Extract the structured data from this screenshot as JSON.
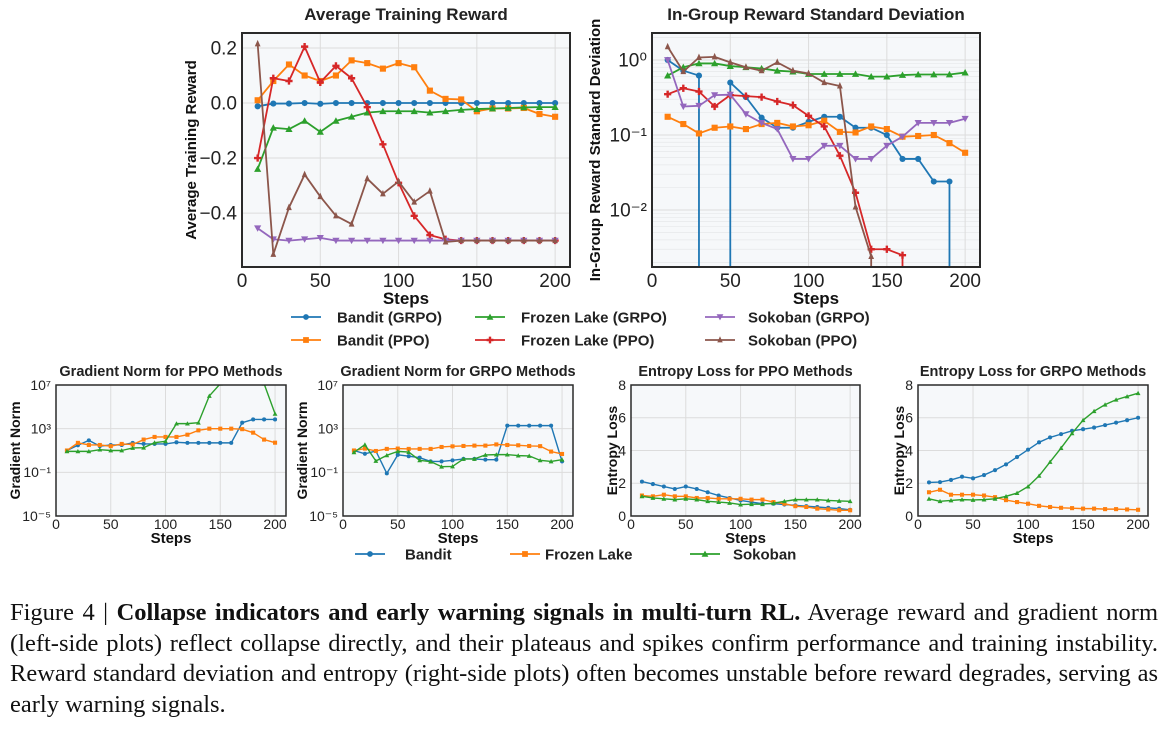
{
  "chart_data": [
    {
      "type": "line",
      "title": "Average Training Reward",
      "xlabel": "Steps",
      "ylabel": "Average Training Reward",
      "yscale": "linear",
      "xlim": [
        0,
        209.5
      ],
      "ylim": [
        -0.596,
        0.2545
      ],
      "xticks": [
        0,
        50,
        100,
        150,
        200
      ],
      "xtick_labels": [
        "0",
        "50",
        "100",
        "150",
        "200"
      ],
      "yticks": [
        0.2,
        0.0,
        -0.2,
        -0.4
      ],
      "ytick_labels": [
        "0.2",
        "0.0",
        "−0.2",
        "−0.4"
      ],
      "grid": true,
      "x": [
        10,
        20,
        30,
        40,
        50,
        60,
        70,
        80,
        90,
        100,
        110,
        120,
        130,
        140,
        150,
        160,
        170,
        180,
        190,
        200
      ],
      "series": [
        {
          "name": "Bandit (GRPO)",
          "color": "#1f77b4",
          "marker": "circle",
          "values": [
            -0.012,
            -0.002,
            -0.002,
            0,
            -0.003,
            0,
            0,
            0,
            0,
            0,
            0,
            0,
            0,
            0,
            0,
            0,
            0,
            0,
            0,
            0
          ]
        },
        {
          "name": "Bandit (PPO)",
          "color": "#ff7f0e",
          "marker": "square",
          "values": [
            0.01,
            0.08,
            0.14,
            0.1,
            0.08,
            0.1,
            0.155,
            0.145,
            0.125,
            0.145,
            0.13,
            0.045,
            0.015,
            0.013,
            -0.03,
            -0.02,
            -0.02,
            -0.018,
            -0.04,
            -0.05
          ]
        },
        {
          "name": "Frozen Lake (GRPO)",
          "color": "#2ca02c",
          "marker": "triangle-up",
          "values": [
            -0.24,
            -0.09,
            -0.095,
            -0.065,
            -0.105,
            -0.065,
            -0.05,
            -0.035,
            -0.03,
            -0.03,
            -0.03,
            -0.035,
            -0.03,
            -0.025,
            -0.022,
            -0.02,
            -0.018,
            -0.016,
            -0.015,
            -0.015
          ]
        },
        {
          "name": "Frozen Lake (PPO)",
          "color": "#d62728",
          "marker": "plus",
          "values": [
            -0.2,
            0.09,
            0.08,
            0.205,
            0.075,
            0.135,
            0.09,
            -0.015,
            -0.15,
            -0.29,
            -0.41,
            -0.48,
            -0.495,
            -0.5,
            -0.5,
            -0.5,
            -0.5,
            -0.5,
            -0.5,
            -0.5
          ]
        },
        {
          "name": "Sokoban (GRPO)",
          "color": "#9467bd",
          "marker": "triangle-down",
          "values": [
            -0.455,
            -0.495,
            -0.5,
            -0.495,
            -0.49,
            -0.5,
            -0.5,
            -0.5,
            -0.5,
            -0.5,
            -0.5,
            -0.5,
            -0.5,
            -0.5,
            -0.5,
            -0.5,
            -0.5,
            -0.5,
            -0.5,
            -0.5
          ]
        },
        {
          "name": "Sokoban (PPO)",
          "color": "#8c564b",
          "marker": "star",
          "values": [
            0.215,
            -0.55,
            -0.38,
            -0.26,
            -0.34,
            -0.41,
            -0.44,
            -0.275,
            -0.33,
            -0.285,
            -0.36,
            -0.32,
            -0.505,
            -0.5,
            -0.5,
            -0.5,
            -0.5,
            -0.5,
            -0.5,
            -0.5
          ]
        }
      ]
    },
    {
      "type": "line",
      "title": "In-Group Reward Standard Deviation",
      "xlabel": "Steps",
      "ylabel": "In-Group Reward Standard Deviation",
      "yscale": "log",
      "xlim": [
        0,
        209.5
      ],
      "ylim": [
        0.00174,
        2.29
      ],
      "xticks": [
        0,
        50,
        100,
        150,
        200
      ],
      "xtick_labels": [
        "0",
        "50",
        "100",
        "150",
        "200"
      ],
      "yticks": [
        1,
        0.1,
        0.01
      ],
      "ytick_labels": [
        "10⁰",
        "10⁻¹",
        "10⁻²"
      ],
      "grid": true,
      "x": [
        10,
        20,
        30,
        40,
        50,
        60,
        70,
        80,
        90,
        100,
        110,
        120,
        130,
        140,
        150,
        160,
        170,
        180,
        190,
        200
      ],
      "series": [
        {
          "name": "Bandit (GRPO)",
          "color": "#1f77b4",
          "marker": "circle",
          "values": [
            1.0,
            0.72,
            0.62,
            0,
            0.5,
            0.32,
            0.17,
            0.125,
            0.125,
            0.15,
            0.175,
            0.175,
            0.125,
            0.125,
            0.1,
            0.048,
            0.048,
            0.024,
            0.024,
            0
          ]
        },
        {
          "name": "Bandit (PPO)",
          "color": "#ff7f0e",
          "marker": "square",
          "values": [
            0.175,
            0.14,
            0.105,
            0.125,
            0.13,
            0.12,
            0.14,
            0.145,
            0.13,
            0.135,
            0.155,
            0.11,
            0.108,
            0.13,
            0.12,
            0.095,
            0.097,
            0.1,
            0.078,
            0.058
          ]
        },
        {
          "name": "Frozen Lake (GRPO)",
          "color": "#2ca02c",
          "marker": "triangle-up",
          "values": [
            0.62,
            0.8,
            0.9,
            0.9,
            0.83,
            0.8,
            0.77,
            0.72,
            0.7,
            0.65,
            0.65,
            0.65,
            0.65,
            0.6,
            0.6,
            0.63,
            0.64,
            0.64,
            0.64,
            0.68
          ]
        },
        {
          "name": "Frozen Lake (PPO)",
          "color": "#d62728",
          "marker": "plus",
          "values": [
            0.35,
            0.42,
            0.38,
            0.24,
            0.34,
            0.33,
            0.32,
            0.28,
            0.25,
            0.18,
            0.13,
            0.053,
            0.017,
            0.003,
            0.003,
            0.0025,
            0,
            0,
            0,
            0
          ]
        },
        {
          "name": "Sokoban (GRPO)",
          "color": "#9467bd",
          "marker": "triangle-down",
          "values": [
            1.0,
            0.24,
            0.245,
            0.34,
            0.345,
            0.19,
            0.145,
            0.12,
            0.048,
            0.048,
            0.072,
            0.072,
            0.048,
            0.048,
            0.072,
            0.095,
            0.145,
            0.145,
            0.145,
            0.165
          ]
        },
        {
          "name": "Sokoban (PPO)",
          "color": "#8c564b",
          "marker": "star",
          "values": [
            1.5,
            0.7,
            1.08,
            1.1,
            0.93,
            0.8,
            0.72,
            0.93,
            0.72,
            0.66,
            0.5,
            0.45,
            0.011,
            0.0024,
            0,
            0,
            0,
            0,
            0,
            0
          ]
        }
      ]
    },
    {
      "type": "line",
      "title": "Gradient Norm for PPO Methods",
      "xlabel": "Steps",
      "ylabel": "Gradient Norm",
      "yscale": "log",
      "xlim": [
        0,
        210
      ],
      "ylim": [
        1e-05,
        10000000
      ],
      "xticks": [
        0,
        50,
        100,
        150,
        200
      ],
      "xtick_labels": [
        "0",
        "50",
        "100",
        "150",
        "200"
      ],
      "yticks": [
        10000000,
        1000,
        0.1,
        1e-05
      ],
      "ytick_labels": [
        "10⁷",
        "10³",
        "10⁻¹",
        "10⁻⁵"
      ],
      "grid": true,
      "x": [
        10,
        20,
        30,
        40,
        50,
        60,
        70,
        80,
        90,
        100,
        110,
        120,
        130,
        140,
        150,
        160,
        170,
        180,
        190,
        200
      ],
      "series": [
        {
          "name": "Bandit",
          "color": "#1f77b4",
          "marker": "circle",
          "values": [
            10,
            30,
            85,
            25,
            32,
            32,
            50,
            40,
            40,
            40,
            56,
            50,
            50,
            50,
            50,
            50,
            3500,
            7000,
            7000,
            7000
          ]
        },
        {
          "name": "Frozen Lake",
          "color": "#ff7f0e",
          "marker": "square",
          "values": [
            10,
            50,
            32,
            32,
            25,
            40,
            35,
            100,
            175,
            175,
            175,
            280,
            700,
            1000,
            1000,
            1000,
            900,
            430,
            100,
            52
          ]
        },
        {
          "name": "Sokoban",
          "color": "#2ca02c",
          "marker": "triangle-up",
          "values": [
            8.3,
            8.3,
            8.3,
            12,
            10,
            10,
            17,
            18,
            52,
            70,
            2900,
            2900,
            3500,
            1000000,
            13000000,
            20000000,
            20000000,
            20000000,
            13000000,
            23000
          ]
        }
      ]
    },
    {
      "type": "line",
      "title": "Gradient Norm for GRPO Methods",
      "xlabel": "Steps",
      "ylabel": "Gradient Norm",
      "yscale": "log",
      "xlim": [
        0,
        210
      ],
      "ylim": [
        1e-05,
        10000000
      ],
      "xticks": [
        0,
        50,
        100,
        150,
        200
      ],
      "xtick_labels": [
        "0",
        "50",
        "100",
        "150",
        "200"
      ],
      "yticks": [
        10000000,
        1000,
        0.1,
        1e-05
      ],
      "ytick_labels": [
        "10⁷",
        "10³",
        "10⁻¹",
        "10⁻⁵"
      ],
      "grid": true,
      "x": [
        10,
        20,
        30,
        40,
        50,
        60,
        70,
        80,
        90,
        100,
        110,
        120,
        130,
        140,
        150,
        160,
        170,
        180,
        190,
        200
      ],
      "series": [
        {
          "name": "Bandit",
          "color": "#1f77b4",
          "marker": "circle",
          "values": [
            10,
            5,
            9,
            0.08,
            4,
            3,
            2.2,
            1,
            1,
            1.25,
            1.7,
            1.7,
            1.45,
            1.45,
            1900,
            1900,
            1900,
            1900,
            1900,
            1
          ]
        },
        {
          "name": "Frozen Lake",
          "color": "#ff7f0e",
          "marker": "square",
          "values": [
            10,
            15,
            9,
            14,
            15,
            14,
            14,
            14,
            21,
            24,
            26,
            28,
            28,
            36,
            32,
            30,
            26,
            25,
            8,
            4.8
          ]
        },
        {
          "name": "Sokoban",
          "color": "#2ca02c",
          "marker": "triangle-up",
          "values": [
            6.8,
            34,
            1.1,
            3.6,
            8.3,
            7.2,
            1.25,
            0.95,
            0.33,
            0.35,
            1.7,
            1.7,
            3.9,
            4.2,
            4.2,
            3.4,
            3.2,
            1.25,
            1,
            1.45
          ]
        }
      ]
    },
    {
      "type": "line",
      "title": "Entropy Loss for PPO Methods",
      "xlabel": "Steps",
      "ylabel": "Entropy Loss",
      "yscale": "linear",
      "xlim": [
        0,
        209
      ],
      "ylim": [
        0,
        8
      ],
      "xticks": [
        0,
        50,
        100,
        150,
        200
      ],
      "xtick_labels": [
        "0",
        "50",
        "100",
        "150",
        "200"
      ],
      "yticks": [
        0,
        2,
        4,
        6,
        8
      ],
      "ytick_labels": [
        "0",
        "2",
        "4",
        "6",
        "8"
      ],
      "grid": true,
      "x": [
        10,
        20,
        30,
        40,
        50,
        60,
        70,
        80,
        90,
        100,
        110,
        120,
        130,
        140,
        150,
        160,
        170,
        180,
        190,
        200
      ],
      "series": [
        {
          "name": "Bandit",
          "color": "#1f77b4",
          "marker": "circle",
          "values": [
            2.1,
            1.95,
            1.8,
            1.65,
            1.8,
            1.65,
            1.45,
            1.25,
            1.1,
            0.95,
            0.85,
            0.75,
            0.75,
            0.7,
            0.65,
            0.6,
            0.55,
            0.5,
            0.45,
            0.38
          ]
        },
        {
          "name": "Frozen Lake",
          "color": "#ff7f0e",
          "marker": "square",
          "values": [
            1.25,
            1.2,
            1.3,
            1.2,
            1.2,
            1.1,
            1.1,
            1.05,
            1.05,
            1.05,
            1.0,
            1.0,
            0.85,
            0.75,
            0.6,
            0.55,
            0.45,
            0.4,
            0.35,
            0.35
          ]
        },
        {
          "name": "Sokoban",
          "color": "#2ca02c",
          "marker": "triangle-up",
          "values": [
            1.2,
            1.1,
            1.05,
            1.0,
            1.05,
            1.0,
            0.9,
            0.85,
            0.8,
            0.7,
            0.72,
            0.72,
            0.78,
            0.9,
            1.0,
            1.0,
            1.0,
            0.95,
            0.92,
            0.9
          ]
        }
      ]
    },
    {
      "type": "line",
      "title": "Entropy Loss for GRPO Methods",
      "xlabel": "Steps",
      "ylabel": "Entropy Loss",
      "yscale": "linear",
      "xlim": [
        0,
        209
      ],
      "ylim": [
        0,
        8
      ],
      "xticks": [
        0,
        50,
        100,
        150,
        200
      ],
      "xtick_labels": [
        "0",
        "50",
        "100",
        "150",
        "200"
      ],
      "yticks": [
        0,
        2,
        4,
        6,
        8
      ],
      "ytick_labels": [
        "0",
        "2",
        "4",
        "6",
        "8"
      ],
      "grid": true,
      "x": [
        10,
        20,
        30,
        40,
        50,
        60,
        70,
        80,
        90,
        100,
        110,
        120,
        130,
        140,
        150,
        160,
        170,
        180,
        190,
        200
      ],
      "series": [
        {
          "name": "Bandit",
          "color": "#1f77b4",
          "marker": "circle",
          "values": [
            2.05,
            2.07,
            2.2,
            2.4,
            2.3,
            2.5,
            2.8,
            3.15,
            3.6,
            4.05,
            4.5,
            4.8,
            5.0,
            5.2,
            5.3,
            5.4,
            5.55,
            5.7,
            5.85,
            6.0
          ]
        },
        {
          "name": "Frozen Lake",
          "color": "#ff7f0e",
          "marker": "square",
          "values": [
            1.45,
            1.6,
            1.3,
            1.3,
            1.3,
            1.25,
            1.15,
            0.97,
            0.85,
            0.75,
            0.62,
            0.55,
            0.5,
            0.48,
            0.45,
            0.45,
            0.42,
            0.42,
            0.4,
            0.38
          ]
        },
        {
          "name": "Sokoban",
          "color": "#2ca02c",
          "marker": "triangle-up",
          "values": [
            1.05,
            0.9,
            0.95,
            1.0,
            0.98,
            1.0,
            1.05,
            1.2,
            1.4,
            1.8,
            2.45,
            3.3,
            4.15,
            5.05,
            5.85,
            6.4,
            6.8,
            7.1,
            7.3,
            7.5
          ]
        }
      ]
    }
  ],
  "legend_top": [
    {
      "label": "Bandit (GRPO)",
      "color": "#1f77b4",
      "marker": "circle"
    },
    {
      "label": "Bandit (PPO)",
      "color": "#ff7f0e",
      "marker": "square"
    },
    {
      "label": "Frozen Lake (GRPO)",
      "color": "#2ca02c",
      "marker": "triangle-up"
    },
    {
      "label": "Frozen Lake (PPO)",
      "color": "#d62728",
      "marker": "plus"
    },
    {
      "label": "Sokoban (GRPO)",
      "color": "#9467bd",
      "marker": "triangle-down"
    },
    {
      "label": "Sokoban (PPO)",
      "color": "#8c564b",
      "marker": "star"
    }
  ],
  "legend_bottom": [
    {
      "label": "Bandit",
      "color": "#1f77b4",
      "marker": "circle"
    },
    {
      "label": "Frozen Lake",
      "color": "#ff7f0e",
      "marker": "square"
    },
    {
      "label": "Sokoban",
      "color": "#2ca02c",
      "marker": "triangle-up"
    }
  ],
  "caption": {
    "label": "Figure 4 | ",
    "title": "Collapse indicators and early warning signals in multi-turn RL.",
    "body": " Average reward and gradient norm (left-side plots) reflect collapse directly, and their plateaus and spikes confirm performance and training instability. Reward standard deviation and entropy (right-side plots) often becomes unstable before reward degrades, serving as early warning signals."
  }
}
